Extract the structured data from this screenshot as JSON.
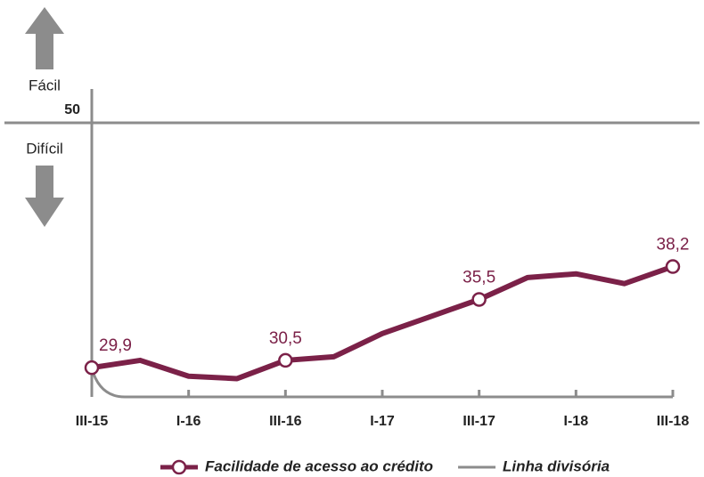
{
  "chart_data": {
    "type": "line",
    "categories": [
      "III-15",
      null,
      "I-16",
      null,
      "III-16",
      null,
      "I-17",
      null,
      "III-17",
      null,
      "I-18",
      null,
      "III-18"
    ],
    "series": [
      {
        "name": "Facilidade de acesso ao crédito",
        "color": "#7b2148",
        "values": [
          29.9,
          30.5,
          29.2,
          29.0,
          30.5,
          30.8,
          32.7,
          34.1,
          35.5,
          37.3,
          37.6,
          36.8,
          38.2
        ],
        "value_labels": [
          "29,9",
          null,
          null,
          null,
          "30,5",
          null,
          null,
          null,
          "35,5",
          null,
          null,
          null,
          "38,2"
        ]
      },
      {
        "name": "Linha divisória",
        "color": "#8c8c8c",
        "values": [
          50,
          50,
          50,
          50,
          50,
          50,
          50,
          50,
          50,
          50,
          50,
          50,
          50
        ]
      }
    ],
    "ylim": [
      27.5,
      50
    ],
    "yticks": [
      50
    ],
    "annotations": [
      "Fácil",
      "Difícil"
    ]
  }
}
